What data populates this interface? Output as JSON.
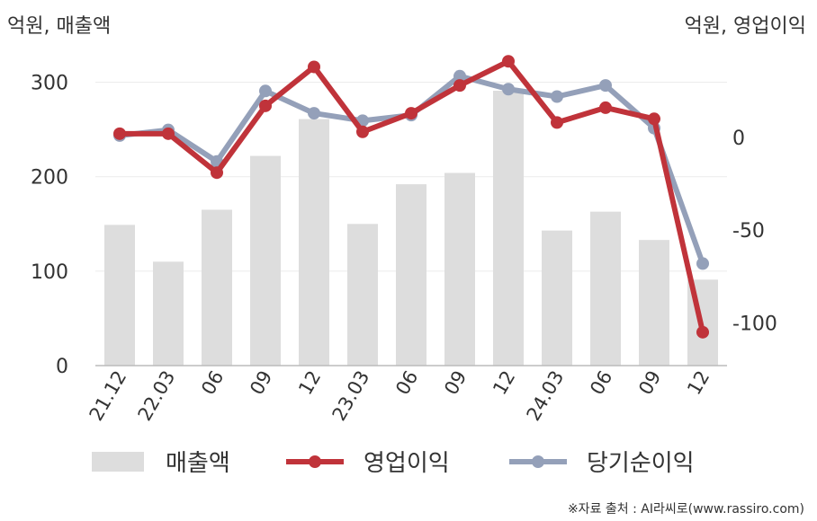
{
  "chart_data": {
    "type": "bar+line",
    "categories": [
      "21.12",
      "22.03",
      "06",
      "09",
      "12",
      "23.03",
      "06",
      "09",
      "12",
      "24.03",
      "06",
      "09",
      "12"
    ],
    "left_axis": {
      "unit_label": "억원, 매출액",
      "ylim": [
        0,
        330
      ],
      "ticks": [
        0,
        100,
        200,
        300
      ]
    },
    "right_axis": {
      "unit_label": "억원, 영업이익",
      "ylim": [
        -123,
        45
      ],
      "ticks": [
        0,
        -50,
        -100
      ]
    },
    "series": [
      {
        "name": "매출액",
        "kind": "bar",
        "axis": "left",
        "color": "#dddddd",
        "values": [
          149,
          110,
          165,
          222,
          261,
          150,
          192,
          204,
          291,
          143,
          163,
          133,
          91
        ]
      },
      {
        "name": "영업이익",
        "kind": "line",
        "axis": "right",
        "color": "#c0333a",
        "values": [
          2,
          2,
          -19,
          17,
          38,
          3,
          13,
          28,
          41,
          8,
          16,
          10,
          -105
        ]
      },
      {
        "name": "당기순이익",
        "kind": "line",
        "axis": "right",
        "color": "#94a0b9",
        "values": [
          1,
          4,
          -13,
          25,
          13,
          9,
          12,
          33,
          26,
          22,
          28,
          5,
          -68
        ]
      }
    ],
    "legend_position": "bottom",
    "grid": true,
    "source_note": "※자료 출처 : AI라씨로(www.rassiro.com)"
  }
}
